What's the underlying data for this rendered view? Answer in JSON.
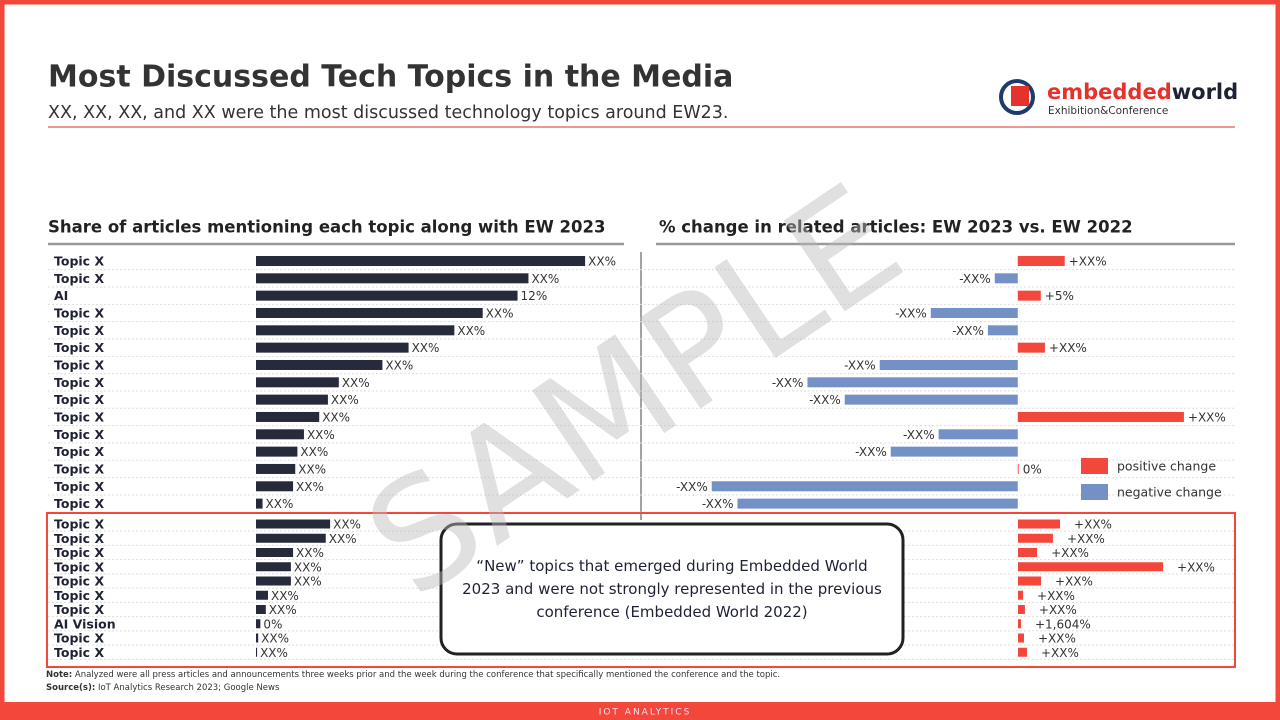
{
  "header": {
    "title": "Most Discussed Tech Topics in the Media",
    "subtitle": "XX, XX, XX, and XX were the most discussed technology topics around EW23.",
    "logo": {
      "part1": "embedded",
      "part2": "world",
      "tagline": "Exhibition&Conference"
    }
  },
  "watermark": "SAMPLE",
  "chart_data": [
    {
      "type": "bar",
      "orientation": "horizontal",
      "title": "Share of articles mentioning each topic along with EW 2023",
      "categories": [
        "Topic X",
        "Topic X",
        "AI",
        "Topic X",
        "Topic X",
        "Topic X",
        "Topic X",
        "Topic X",
        "Topic X",
        "Topic X",
        "Topic X",
        "Topic X",
        "Topic X",
        "Topic X",
        "Topic X"
      ],
      "values": [
        15.1,
        12.5,
        12,
        10.4,
        9.1,
        7.0,
        5.8,
        3.8,
        3.3,
        2.9,
        2.2,
        1.9,
        1.8,
        1.7,
        0.3
      ],
      "value_labels": [
        "XX%",
        "XX%",
        "12%",
        "XX%",
        "XX%",
        "XX%",
        "XX%",
        "XX%",
        "XX%",
        "XX%",
        "XX%",
        "XX%",
        "XX%",
        "XX%",
        "XX%"
      ],
      "color": "#262a3a",
      "xlim": [
        0,
        16.7
      ]
    },
    {
      "type": "diverging-bar",
      "orientation": "horizontal",
      "title": "% change in related articles: EW 2023 vs. EW 2022",
      "values": [
        10.2,
        -5.0,
        5,
        -18.9,
        -6.5,
        5.9,
        -30,
        -45.7,
        -37.6,
        36.1,
        -17.2,
        -27.6,
        0.2,
        -66.5,
        -60.9
      ],
      "value_labels": [
        "+XX%",
        "-XX%",
        "+5%",
        "-XX%",
        "-XX%",
        "+XX%",
        "-XX%",
        "-XX%",
        "-XX%",
        "+XX%",
        "-XX%",
        "-XX%",
        "0%",
        "-XX%",
        "-XX%"
      ],
      "positive_color": "#f4473b",
      "negative_color": "#7391c6",
      "legend": [
        {
          "name": "positive change",
          "color": "#f4473b"
        },
        {
          "name": "negative change",
          "color": "#7391c6"
        }
      ],
      "xlim": [
        -81,
        47.2
      ]
    },
    {
      "type": "bar",
      "orientation": "horizontal",
      "categories": [
        "Topic X",
        "Topic X",
        "Topic X",
        "Topic X",
        "Topic X",
        "Topic X",
        "Topic X",
        "AI Vision",
        "Topic X",
        "Topic X"
      ],
      "values": [
        3.4,
        3.2,
        1.7,
        1.6,
        1.6,
        0.55,
        0.45,
        0.2,
        0.1,
        0.05
      ],
      "value_labels": [
        "XX%",
        "XX%",
        "XX%",
        "XX%",
        "XX%",
        "XX%",
        "XX%",
        "0%",
        "XX%",
        "XX%"
      ],
      "color": "#262a3a",
      "xlim": [
        0,
        16.7
      ]
    },
    {
      "type": "diverging-bar",
      "orientation": "horizontal",
      "values": [
        22500,
        18700,
        10200,
        77600,
        12300,
        2700,
        3700,
        1604,
        3200,
        4800
      ],
      "value_labels": [
        "+XX%",
        "+XX%",
        "+XX%",
        "+XX%",
        "+XX%",
        "+XX%",
        "+XX%",
        "+1,604%",
        "+XX%",
        "+XX%"
      ],
      "positive_color": "#f4473b",
      "negative_color": "#7391c6",
      "xlim": [
        0,
        116100
      ]
    }
  ],
  "callout": "“New” topics that emerged during Embedded World 2023 and were not strongly represented in the previous conference (Embedded World 2022)",
  "note_label": "Note:",
  "note": "Analyzed were all press articles and announcements three weeks prior and the week during the conference that specifically mentioned the conference and the topic.",
  "source_label": "Source(s):",
  "source": "IoT Analytics Research 2023; Google News",
  "footer": "IOT ANALYTICS"
}
